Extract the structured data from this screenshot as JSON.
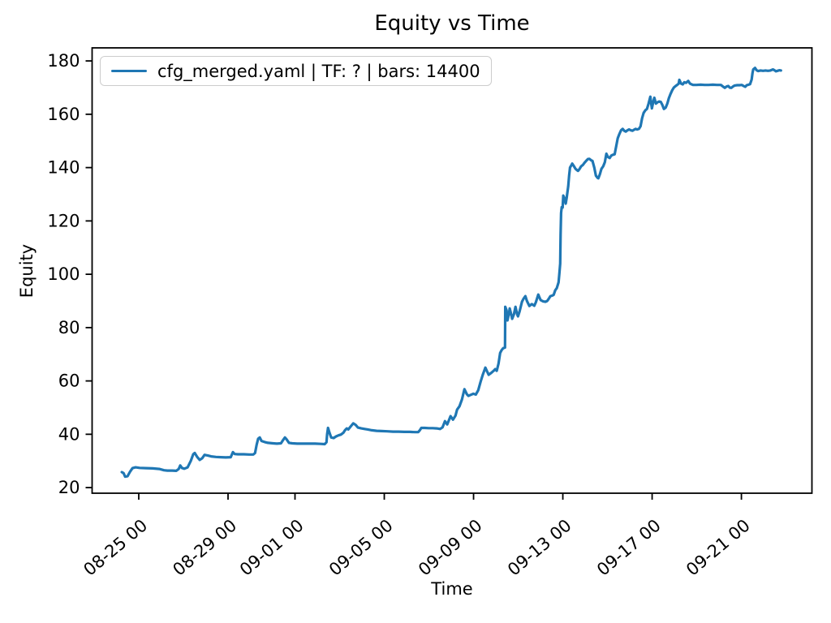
{
  "figure": {
    "background": "#ffffff",
    "text_color": "#000000",
    "spine_color": "#000000"
  },
  "chart_data": {
    "type": "line",
    "title": "Equity vs Time",
    "xlabel": "Time",
    "ylabel": "Equity",
    "grid": false,
    "x_unit": "days since 08-24 00:00",
    "xlim": [
      -1.09,
      31.16
    ],
    "ylim": [
      17.9,
      184.9
    ],
    "x_ticks": [
      {
        "pos": 1,
        "label": "08-25 00"
      },
      {
        "pos": 5,
        "label": "08-29 00"
      },
      {
        "pos": 8,
        "label": "09-01 00"
      },
      {
        "pos": 12,
        "label": "09-05 00"
      },
      {
        "pos": 16,
        "label": "09-09 00"
      },
      {
        "pos": 20,
        "label": "09-13 00"
      },
      {
        "pos": 24,
        "label": "09-17 00"
      },
      {
        "pos": 28,
        "label": "09-21 00"
      }
    ],
    "x_tick_rotation_deg": 40,
    "y_ticks": [
      20,
      40,
      60,
      80,
      100,
      120,
      140,
      160,
      180
    ],
    "legend": {
      "position": "upper left",
      "entries": [
        {
          "label": "cfg_merged.yaml | TF: ? | bars: 14400",
          "color": "#1f77b4"
        }
      ]
    },
    "series": [
      {
        "name": "cfg_merged.yaml | TF: ? | bars: 14400",
        "color": "#1f77b4",
        "line_width": 3.2,
        "points": [
          [
            0.24,
            25.8
          ],
          [
            0.32,
            25.4
          ],
          [
            0.39,
            24.1
          ],
          [
            0.5,
            24.3
          ],
          [
            0.61,
            26.0
          ],
          [
            0.72,
            27.3
          ],
          [
            0.86,
            27.6
          ],
          [
            1.04,
            27.4
          ],
          [
            1.33,
            27.3
          ],
          [
            1.62,
            27.2
          ],
          [
            1.92,
            27.0
          ],
          [
            2.13,
            26.5
          ],
          [
            2.28,
            26.4
          ],
          [
            2.5,
            26.4
          ],
          [
            2.68,
            26.3
          ],
          [
            2.79,
            27.0
          ],
          [
            2.86,
            28.3
          ],
          [
            2.93,
            27.4
          ],
          [
            3.04,
            27.1
          ],
          [
            3.19,
            27.6
          ],
          [
            3.33,
            30.0
          ],
          [
            3.44,
            32.5
          ],
          [
            3.51,
            33.0
          ],
          [
            3.62,
            31.5
          ],
          [
            3.73,
            30.4
          ],
          [
            3.84,
            31.0
          ],
          [
            3.95,
            32.3
          ],
          [
            4.1,
            32.0
          ],
          [
            4.24,
            31.7
          ],
          [
            4.46,
            31.5
          ],
          [
            4.68,
            31.4
          ],
          [
            4.9,
            31.3
          ],
          [
            5.12,
            31.4
          ],
          [
            5.22,
            33.3
          ],
          [
            5.3,
            32.6
          ],
          [
            5.44,
            32.5
          ],
          [
            5.7,
            32.5
          ],
          [
            5.95,
            32.4
          ],
          [
            6.13,
            32.4
          ],
          [
            6.21,
            33.0
          ],
          [
            6.28,
            36.0
          ],
          [
            6.35,
            38.3
          ],
          [
            6.42,
            38.8
          ],
          [
            6.5,
            37.5
          ],
          [
            6.64,
            37.1
          ],
          [
            6.79,
            36.8
          ],
          [
            7.01,
            36.6
          ],
          [
            7.19,
            36.5
          ],
          [
            7.37,
            36.6
          ],
          [
            7.48,
            38.0
          ],
          [
            7.55,
            38.8
          ],
          [
            7.62,
            38.1
          ],
          [
            7.73,
            36.8
          ],
          [
            7.88,
            36.6
          ],
          [
            8.1,
            36.5
          ],
          [
            8.35,
            36.5
          ],
          [
            8.61,
            36.5
          ],
          [
            8.9,
            36.5
          ],
          [
            9.15,
            36.4
          ],
          [
            9.33,
            36.3
          ],
          [
            9.41,
            37.0
          ],
          [
            9.44,
            40.0
          ],
          [
            9.48,
            42.4
          ],
          [
            9.55,
            40.5
          ],
          [
            9.62,
            38.8
          ],
          [
            9.73,
            38.6
          ],
          [
            9.84,
            39.2
          ],
          [
            9.95,
            39.6
          ],
          [
            10.06,
            39.9
          ],
          [
            10.17,
            40.6
          ],
          [
            10.24,
            41.5
          ],
          [
            10.32,
            42.2
          ],
          [
            10.39,
            41.8
          ],
          [
            10.5,
            43.0
          ],
          [
            10.61,
            44.1
          ],
          [
            10.72,
            43.5
          ],
          [
            10.82,
            42.5
          ],
          [
            10.97,
            42.2
          ],
          [
            11.12,
            42.0
          ],
          [
            11.26,
            41.8
          ],
          [
            11.44,
            41.5
          ],
          [
            11.66,
            41.3
          ],
          [
            11.88,
            41.2
          ],
          [
            12.13,
            41.1
          ],
          [
            12.39,
            41.0
          ],
          [
            12.64,
            41.0
          ],
          [
            12.9,
            40.9
          ],
          [
            13.15,
            40.9
          ],
          [
            13.37,
            40.8
          ],
          [
            13.52,
            40.8
          ],
          [
            13.59,
            41.5
          ],
          [
            13.66,
            42.4
          ],
          [
            13.81,
            42.4
          ],
          [
            13.99,
            42.3
          ],
          [
            14.17,
            42.3
          ],
          [
            14.35,
            42.2
          ],
          [
            14.5,
            42.0
          ],
          [
            14.61,
            42.6
          ],
          [
            14.72,
            44.9
          ],
          [
            14.82,
            43.7
          ],
          [
            14.97,
            46.8
          ],
          [
            15.08,
            45.5
          ],
          [
            15.19,
            47.0
          ],
          [
            15.26,
            49.2
          ],
          [
            15.37,
            50.5
          ],
          [
            15.48,
            53.0
          ],
          [
            15.59,
            56.9
          ],
          [
            15.7,
            55.0
          ],
          [
            15.77,
            54.4
          ],
          [
            15.88,
            54.8
          ],
          [
            15.99,
            55.2
          ],
          [
            16.1,
            54.9
          ],
          [
            16.21,
            56.5
          ],
          [
            16.32,
            59.8
          ],
          [
            16.42,
            62.5
          ],
          [
            16.53,
            65.0
          ],
          [
            16.61,
            63.5
          ],
          [
            16.68,
            62.3
          ],
          [
            16.79,
            63.0
          ],
          [
            16.9,
            63.8
          ],
          [
            16.97,
            64.4
          ],
          [
            17.04,
            63.8
          ],
          [
            17.12,
            66.5
          ],
          [
            17.19,
            70.5
          ],
          [
            17.26,
            71.6
          ],
          [
            17.33,
            72.3
          ],
          [
            17.41,
            72.5
          ],
          [
            17.42,
            87.8
          ],
          [
            17.48,
            86.5
          ],
          [
            17.52,
            82.7
          ],
          [
            17.59,
            85.5
          ],
          [
            17.62,
            87.2
          ],
          [
            17.7,
            84.5
          ],
          [
            17.73,
            83.3
          ],
          [
            17.81,
            85.0
          ],
          [
            17.88,
            87.8
          ],
          [
            17.95,
            85.0
          ],
          [
            17.99,
            84.2
          ],
          [
            18.06,
            86.0
          ],
          [
            18.17,
            89.7
          ],
          [
            18.24,
            90.8
          ],
          [
            18.32,
            91.8
          ],
          [
            18.39,
            90.0
          ],
          [
            18.5,
            88.1
          ],
          [
            18.61,
            88.8
          ],
          [
            18.72,
            88.2
          ],
          [
            18.79,
            89.5
          ],
          [
            18.9,
            92.4
          ],
          [
            18.97,
            91.0
          ],
          [
            19.01,
            90.3
          ],
          [
            19.12,
            89.8
          ],
          [
            19.22,
            89.7
          ],
          [
            19.3,
            90.0
          ],
          [
            19.37,
            90.8
          ],
          [
            19.44,
            91.8
          ],
          [
            19.52,
            92.0
          ],
          [
            19.59,
            92.3
          ],
          [
            19.66,
            94.0
          ],
          [
            19.73,
            94.8
          ],
          [
            19.81,
            97.0
          ],
          [
            19.84,
            100.0
          ],
          [
            19.88,
            104.0
          ],
          [
            19.9,
            115.0
          ],
          [
            19.92,
            123.0
          ],
          [
            19.95,
            125.2
          ],
          [
            19.99,
            125.0
          ],
          [
            20.02,
            129.5
          ],
          [
            20.1,
            128.0
          ],
          [
            20.13,
            126.5
          ],
          [
            20.17,
            128.5
          ],
          [
            20.24,
            133.0
          ],
          [
            20.28,
            137.0
          ],
          [
            20.32,
            140.0
          ],
          [
            20.39,
            141.0
          ],
          [
            20.42,
            141.5
          ],
          [
            20.5,
            140.5
          ],
          [
            20.57,
            139.5
          ],
          [
            20.64,
            139.0
          ],
          [
            20.68,
            138.8
          ],
          [
            20.75,
            139.5
          ],
          [
            20.82,
            140.5
          ],
          [
            20.9,
            141.0
          ],
          [
            20.97,
            141.8
          ],
          [
            21.04,
            142.5
          ],
          [
            21.12,
            143.2
          ],
          [
            21.19,
            143.3
          ],
          [
            21.26,
            142.8
          ],
          [
            21.33,
            142.5
          ],
          [
            21.41,
            140.0
          ],
          [
            21.48,
            137.0
          ],
          [
            21.55,
            136.2
          ],
          [
            21.59,
            136.0
          ],
          [
            21.66,
            137.5
          ],
          [
            21.73,
            139.5
          ],
          [
            21.81,
            140.5
          ],
          [
            21.88,
            142.0
          ],
          [
            21.95,
            145.2
          ],
          [
            22.02,
            144.0
          ],
          [
            22.1,
            143.6
          ],
          [
            22.17,
            144.5
          ],
          [
            22.24,
            144.8
          ],
          [
            22.32,
            145.0
          ],
          [
            22.39,
            148.0
          ],
          [
            22.46,
            151.0
          ],
          [
            22.53,
            152.5
          ],
          [
            22.61,
            154.0
          ],
          [
            22.68,
            154.5
          ],
          [
            22.75,
            153.8
          ],
          [
            22.82,
            153.5
          ],
          [
            22.9,
            154.0
          ],
          [
            22.97,
            154.3
          ],
          [
            23.04,
            154.0
          ],
          [
            23.12,
            153.8
          ],
          [
            23.19,
            154.2
          ],
          [
            23.26,
            154.5
          ],
          [
            23.33,
            154.3
          ],
          [
            23.41,
            154.5
          ],
          [
            23.48,
            155.5
          ],
          [
            23.55,
            158.5
          ],
          [
            23.62,
            160.5
          ],
          [
            23.7,
            161.5
          ],
          [
            23.77,
            162.0
          ],
          [
            23.84,
            164.0
          ],
          [
            23.92,
            166.6
          ],
          [
            23.95,
            164.5
          ],
          [
            23.99,
            162.2
          ],
          [
            24.06,
            165.0
          ],
          [
            24.1,
            166.2
          ],
          [
            24.17,
            164.0
          ],
          [
            24.24,
            164.5
          ],
          [
            24.32,
            164.8
          ],
          [
            24.39,
            164.6
          ],
          [
            24.46,
            163.5
          ],
          [
            24.53,
            162.0
          ],
          [
            24.61,
            162.5
          ],
          [
            24.68,
            164.0
          ],
          [
            24.75,
            166.0
          ],
          [
            24.82,
            167.5
          ],
          [
            24.9,
            169.0
          ],
          [
            24.97,
            170.0
          ],
          [
            25.04,
            170.5
          ],
          [
            25.12,
            171.0
          ],
          [
            25.19,
            171.5
          ],
          [
            25.22,
            172.9
          ],
          [
            25.3,
            171.5
          ],
          [
            25.37,
            171.2
          ],
          [
            25.44,
            172.0
          ],
          [
            25.52,
            171.8
          ],
          [
            25.59,
            172.3
          ],
          [
            25.62,
            172.5
          ],
          [
            25.7,
            171.5
          ],
          [
            25.77,
            171.2
          ],
          [
            25.84,
            171.0
          ],
          [
            25.99,
            171.0
          ],
          [
            26.17,
            171.1
          ],
          [
            26.35,
            171.0
          ],
          [
            26.53,
            171.0
          ],
          [
            26.72,
            171.1
          ],
          [
            26.9,
            171.0
          ],
          [
            27.08,
            171.0
          ],
          [
            27.19,
            170.3
          ],
          [
            27.26,
            169.9
          ],
          [
            27.33,
            170.4
          ],
          [
            27.41,
            170.6
          ],
          [
            27.48,
            170.0
          ],
          [
            27.55,
            169.9
          ],
          [
            27.62,
            170.4
          ],
          [
            27.7,
            170.8
          ],
          [
            27.81,
            170.9
          ],
          [
            27.92,
            170.9
          ],
          [
            28.02,
            171.0
          ],
          [
            28.1,
            170.6
          ],
          [
            28.17,
            170.3
          ],
          [
            28.24,
            170.9
          ],
          [
            28.32,
            171.1
          ],
          [
            28.39,
            171.3
          ],
          [
            28.46,
            173.0
          ],
          [
            28.5,
            175.5
          ],
          [
            28.53,
            176.8
          ],
          [
            28.61,
            177.4
          ],
          [
            28.68,
            176.5
          ],
          [
            28.75,
            176.2
          ],
          [
            28.86,
            176.4
          ],
          [
            28.97,
            176.3
          ],
          [
            29.08,
            176.4
          ],
          [
            29.19,
            176.3
          ],
          [
            29.3,
            176.4
          ],
          [
            29.41,
            176.8
          ],
          [
            29.48,
            176.5
          ],
          [
            29.55,
            176.1
          ],
          [
            29.62,
            176.3
          ],
          [
            29.7,
            176.5
          ],
          [
            29.77,
            176.4
          ]
        ]
      }
    ]
  }
}
